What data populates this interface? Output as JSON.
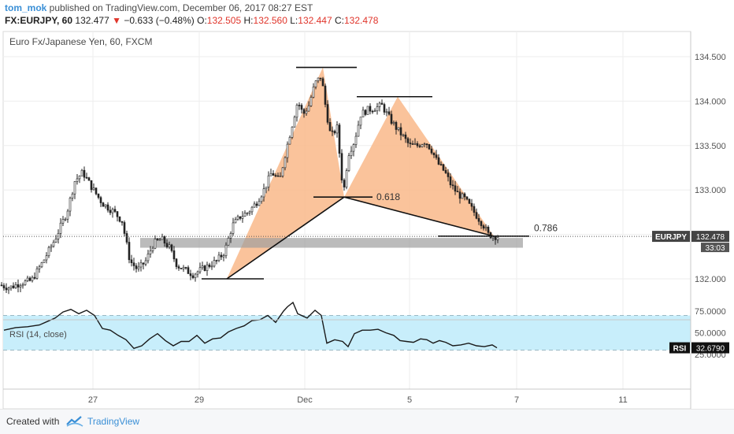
{
  "header": {
    "user": "tom_mok",
    "published_text": " published on TradingView.com, December 06, 2017 08:27 EST",
    "symbol": "FX:EURJPY, 60",
    "price": "132.477",
    "change": "−0.633 (−0.48%)",
    "o_label": "O:",
    "o_value": "132.505",
    "h_label": "H:",
    "h_value": "132.560",
    "l_label": "L:",
    "l_value": "132.447",
    "c_label": "C:",
    "c_value": "132.478"
  },
  "footer": {
    "created_with": "Created with",
    "brand": "TradingView"
  },
  "colors": {
    "pattern_fill": "#f9b98a",
    "zone": "#9e9e9e",
    "rsi_band": "#c8eefb",
    "rsi_line": "#1a1a1a",
    "candles": "#222222",
    "price_marker_bg": "#444444"
  },
  "chart_data": [
    {
      "type": "candlestick",
      "title": "Euro Fx/Japanese Yen, 60, FXCM",
      "x_ticks": [
        "27",
        "29",
        "Dec",
        "5",
        "7",
        "11"
      ],
      "y_ticks": [
        "132.000",
        "132.500",
        "133.000",
        "133.500",
        "134.000",
        "134.500"
      ],
      "ylim": [
        131.9,
        134.75
      ],
      "grid": true,
      "close_path": [
        [
          0,
          131.93
        ],
        [
          12,
          131.9
        ],
        [
          25,
          131.95
        ],
        [
          40,
          131.98
        ],
        [
          55,
          132.2
        ],
        [
          70,
          132.45
        ],
        [
          85,
          132.75
        ],
        [
          95,
          133.1
        ],
        [
          105,
          133.2
        ],
        [
          115,
          133.05
        ],
        [
          130,
          132.85
        ],
        [
          145,
          132.75
        ],
        [
          155,
          132.65
        ],
        [
          165,
          132.2
        ],
        [
          175,
          132.1
        ],
        [
          185,
          132.2
        ],
        [
          195,
          132.4
        ],
        [
          205,
          132.45
        ],
        [
          215,
          132.35
        ],
        [
          225,
          132.15
        ],
        [
          235,
          132.1
        ],
        [
          245,
          132.05
        ],
        [
          255,
          132.1
        ],
        [
          265,
          132.15
        ],
        [
          275,
          132.2
        ],
        [
          285,
          132.3
        ],
        [
          295,
          132.6
        ],
        [
          305,
          132.7
        ],
        [
          315,
          132.75
        ],
        [
          325,
          132.85
        ],
        [
          335,
          133.0
        ],
        [
          345,
          133.2
        ],
        [
          355,
          133.1
        ],
        [
          362,
          133.4
        ],
        [
          370,
          133.7
        ],
        [
          378,
          134.0
        ],
        [
          385,
          133.85
        ],
        [
          392,
          133.95
        ],
        [
          400,
          134.2
        ],
        [
          408,
          134.28
        ],
        [
          414,
          133.9
        ],
        [
          420,
          133.6
        ],
        [
          428,
          133.7
        ],
        [
          436,
          132.95
        ],
        [
          442,
          133.4
        ],
        [
          450,
          133.55
        ],
        [
          458,
          133.85
        ],
        [
          466,
          133.9
        ],
        [
          475,
          133.92
        ],
        [
          485,
          133.95
        ],
        [
          495,
          133.8
        ],
        [
          503,
          133.7
        ],
        [
          512,
          133.6
        ],
        [
          520,
          133.5
        ],
        [
          530,
          133.5
        ],
        [
          540,
          133.55
        ],
        [
          548,
          133.45
        ],
        [
          556,
          133.3
        ],
        [
          565,
          133.2
        ],
        [
          573,
          133.05
        ],
        [
          582,
          132.95
        ],
        [
          590,
          132.9
        ],
        [
          598,
          132.8
        ],
        [
          606,
          132.7
        ],
        [
          614,
          132.6
        ],
        [
          620,
          132.5
        ],
        [
          627,
          132.48
        ],
        [
          632,
          132.48
        ]
      ],
      "pattern_points": {
        "X": 132.0,
        "A": 134.38,
        "B": 132.92,
        "C": 134.05,
        "D": 132.48
      },
      "annotations": [
        {
          "text": "0.618",
          "price": 132.92
        },
        {
          "text": "0.786",
          "price": 132.52
        }
      ],
      "support_zone": [
        132.35,
        132.46
      ],
      "last_price": {
        "symbol": "EURJPY",
        "value": "132.478",
        "countdown": "33:03"
      }
    },
    {
      "type": "line",
      "title": "RSI (14, close)",
      "y_ticks": [
        "25.0000",
        "50.0000",
        "75.0000"
      ],
      "band": [
        30,
        70
      ],
      "ylim": [
        20,
        85
      ],
      "last_value": {
        "label": "RSI",
        "value": "32.6790"
      },
      "series": [
        {
          "values": [
            [
              5,
              53
            ],
            [
              20,
              56
            ],
            [
              35,
              57
            ],
            [
              50,
              59
            ],
            [
              60,
              63
            ],
            [
              70,
              67
            ],
            [
              80,
              74
            ],
            [
              90,
              77
            ],
            [
              100,
              72
            ],
            [
              110,
              76
            ],
            [
              120,
              70
            ],
            [
              130,
              55
            ],
            [
              140,
              53
            ],
            [
              150,
              47
            ],
            [
              160,
              42
            ],
            [
              170,
              32
            ],
            [
              180,
              35
            ],
            [
              190,
              43
            ],
            [
              200,
              49
            ],
            [
              210,
              41
            ],
            [
              220,
              35
            ],
            [
              230,
              40
            ],
            [
              240,
              40
            ],
            [
              250,
              47
            ],
            [
              260,
              38
            ],
            [
              270,
              43
            ],
            [
              280,
              44
            ],
            [
              290,
              51
            ],
            [
              300,
              55
            ],
            [
              310,
              58
            ],
            [
              320,
              64
            ],
            [
              330,
              65
            ],
            [
              340,
              70
            ],
            [
              350,
              62
            ],
            [
              360,
              75
            ],
            [
              365,
              80
            ],
            [
              372,
              85
            ],
            [
              378,
              72
            ],
            [
              390,
              67
            ],
            [
              400,
              76
            ],
            [
              408,
              70
            ],
            [
              415,
              38
            ],
            [
              425,
              42
            ],
            [
              435,
              40
            ],
            [
              442,
              34
            ],
            [
              450,
              49
            ],
            [
              460,
              53
            ],
            [
              470,
              53
            ],
            [
              480,
              54
            ],
            [
              490,
              50
            ],
            [
              500,
              47
            ],
            [
              508,
              41
            ],
            [
              516,
              40
            ],
            [
              525,
              39
            ],
            [
              534,
              43
            ],
            [
              542,
              42
            ],
            [
              550,
              38
            ],
            [
              558,
              41
            ],
            [
              566,
              39
            ],
            [
              575,
              35
            ],
            [
              585,
              36
            ],
            [
              595,
              38
            ],
            [
              605,
              35
            ],
            [
              615,
              34
            ],
            [
              625,
              36
            ],
            [
              631,
              32.68
            ]
          ]
        }
      ]
    }
  ]
}
